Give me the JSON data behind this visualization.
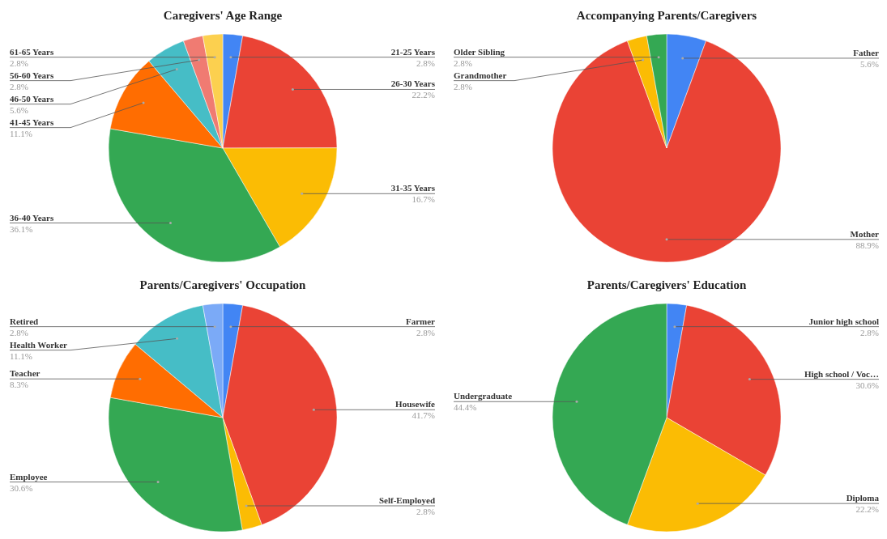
{
  "chart_data": [
    {
      "type": "pie",
      "title": "Caregivers' Age Range",
      "categories": [
        "21-25 Years",
        "26-30 Years",
        "31-35 Years",
        "36-40 Years",
        "41-45 Years",
        "46-50 Years",
        "56-60 Years",
        "61-65 Years"
      ],
      "values": [
        2.8,
        22.2,
        16.7,
        36.1,
        11.1,
        5.6,
        2.8,
        2.8
      ],
      "colors": [
        "#4285f4",
        "#ea4335",
        "#fbbc04",
        "#34a853",
        "#ff6d01",
        "#46bdc6",
        "#f07b72",
        "#fcd04f"
      ],
      "value_labels": [
        "2.8%",
        "22.2%",
        "16.7%",
        "36.1%",
        "11.1%",
        "5.6%",
        "2.8%",
        "2.8%"
      ]
    },
    {
      "type": "pie",
      "title": "Accompanying Parents/Caregivers",
      "categories": [
        "Father",
        "Mother",
        "Grandmother",
        "Older Sibling"
      ],
      "values": [
        5.6,
        88.9,
        2.8,
        2.8
      ],
      "colors": [
        "#4285f4",
        "#ea4335",
        "#fbbc04",
        "#34a853"
      ],
      "value_labels": [
        "5.6%",
        "88.9%",
        "2.8%",
        "2.8%"
      ]
    },
    {
      "type": "pie",
      "title": "Parents/Caregivers' Occupation",
      "categories": [
        "Farmer",
        "Housewife",
        "Self-Employed",
        "Employee",
        "Teacher",
        "Health Worker",
        "Retired"
      ],
      "values": [
        2.8,
        41.7,
        2.8,
        30.6,
        8.3,
        11.1,
        2.8
      ],
      "colors": [
        "#4285f4",
        "#ea4335",
        "#fbbc04",
        "#34a853",
        "#ff6d01",
        "#46bdc6",
        "#7baaf7"
      ],
      "value_labels": [
        "2.8%",
        "41.7%",
        "2.8%",
        "30.6%",
        "8.3%",
        "11.1%",
        "2.8%"
      ]
    },
    {
      "type": "pie",
      "title": "Parents/Caregivers' Education",
      "categories": [
        "Junior high school",
        "High school / Voc…",
        "Diploma",
        "Undergraduate"
      ],
      "values": [
        2.8,
        30.6,
        22.2,
        44.4
      ],
      "colors": [
        "#4285f4",
        "#ea4335",
        "#fbbc04",
        "#34a853"
      ],
      "value_labels": [
        "2.8%",
        "30.6%",
        "22.2%",
        "44.4%"
      ]
    }
  ]
}
